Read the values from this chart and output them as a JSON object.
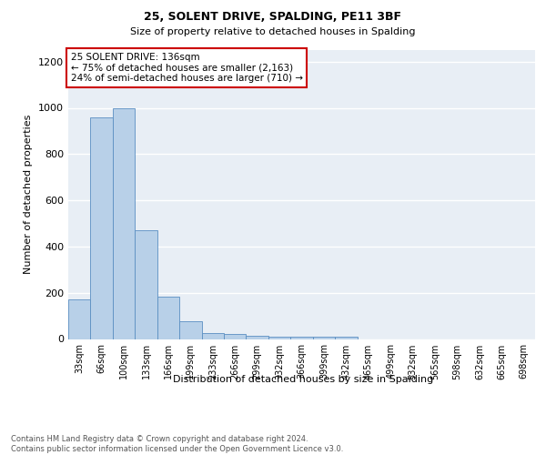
{
  "title1": "25, SOLENT DRIVE, SPALDING, PE11 3BF",
  "title2": "Size of property relative to detached houses in Spalding",
  "xlabel": "Distribution of detached houses by size in Spalding",
  "ylabel": "Number of detached properties",
  "categories": [
    "33sqm",
    "66sqm",
    "100sqm",
    "133sqm",
    "166sqm",
    "199sqm",
    "233sqm",
    "266sqm",
    "299sqm",
    "332sqm",
    "366sqm",
    "399sqm",
    "432sqm",
    "465sqm",
    "499sqm",
    "532sqm",
    "565sqm",
    "598sqm",
    "632sqm",
    "665sqm",
    "698sqm"
  ],
  "values": [
    170,
    960,
    1000,
    470,
    185,
    75,
    25,
    20,
    15,
    10,
    10,
    10,
    10,
    0,
    0,
    0,
    0,
    0,
    0,
    0,
    0
  ],
  "bar_color": "#b8d0e8",
  "bar_edge_color": "#5b8fc2",
  "background_color": "#e8eef5",
  "grid_color": "#ffffff",
  "annotation_text": "25 SOLENT DRIVE: 136sqm\n← 75% of detached houses are smaller (2,163)\n24% of semi-detached houses are larger (710) →",
  "annotation_box_color": "#ffffff",
  "annotation_box_edge": "#cc0000",
  "footer": "Contains HM Land Registry data © Crown copyright and database right 2024.\nContains public sector information licensed under the Open Government Licence v3.0.",
  "ylim": [
    0,
    1250
  ],
  "yticks": [
    0,
    200,
    400,
    600,
    800,
    1000,
    1200
  ]
}
